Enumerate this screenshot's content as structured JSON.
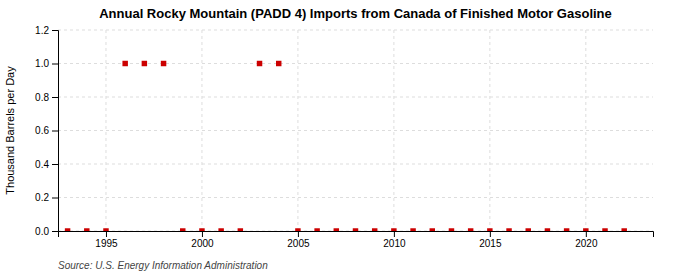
{
  "chart_data": {
    "type": "scatter",
    "title": "Annual Rocky Mountain (PADD 4) Imports from Canada of Finished Motor Gasoline",
    "y_label": "Thousand Barrels per Day",
    "source": "Source: U.S. Energy Information Administration",
    "x": [
      1993,
      1994,
      1995,
      1996,
      1997,
      1998,
      1999,
      2000,
      2001,
      2002,
      2003,
      2004,
      2005,
      2006,
      2007,
      2008,
      2009,
      2010,
      2011,
      2012,
      2013,
      2014,
      2015,
      2016,
      2017,
      2018,
      2019,
      2020,
      2021,
      2022
    ],
    "values": [
      0,
      0,
      0,
      1.0,
      1.0,
      1.0,
      0,
      0,
      0,
      0,
      1.0,
      1.0,
      0,
      0,
      0,
      0,
      0,
      0,
      0,
      0,
      0,
      0,
      0,
      0,
      0,
      0,
      0,
      0,
      0,
      0
    ],
    "color": "#cc0000",
    "marker": "square",
    "xlim": [
      1992.5,
      2023.5
    ],
    "ylim": [
      0,
      1.2
    ],
    "xticks": [
      1995,
      2000,
      2005,
      2010,
      2015,
      2020
    ],
    "yticks": [
      {
        "value": 0,
        "label": "0.0"
      },
      0.2,
      0.4,
      0.6,
      0.8,
      {
        "value": 1,
        "label": "1.0"
      },
      1.2
    ],
    "grid": true
  }
}
